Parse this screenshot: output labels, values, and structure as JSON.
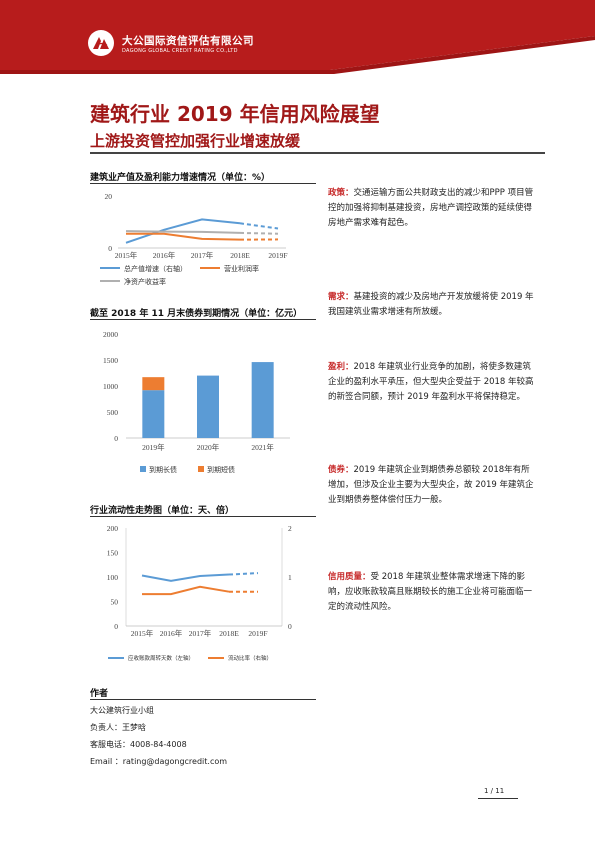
{
  "header": {
    "logo_cn": "大公国际资信评估有限公司",
    "logo_en": "DAGONG GLOBAL CREDIT RATING CO.,LTD",
    "brand_color": "#b71c1c"
  },
  "title": "建筑行业 2019 年信用风险展望",
  "subtitle": "上游投资管控加强行业增速放缓",
  "chart1": {
    "section_title": "建筑业产值及盈利能力增速情况（单位：%）",
    "chart_data": {
      "type": "line",
      "categories": [
        "2015年",
        "2016年",
        "2017年",
        "2018E",
        "2019F"
      ],
      "ylim": [
        0,
        20
      ],
      "yticks": [
        "20",
        "0"
      ],
      "series": [
        {
          "name": "总产值增速（右轴）",
          "color": "#5b9bd5",
          "values": [
            2,
            7,
            11,
            9.5,
            7.5
          ]
        },
        {
          "name": "营业利润率",
          "color": "#ed7d31",
          "values": [
            5.5,
            5.5,
            3.5,
            3.2,
            3.3
          ]
        },
        {
          "name": "净资产收益率",
          "color": "#b0b0b0",
          "values": [
            6.5,
            6.3,
            6.2,
            5.8,
            5.5
          ]
        }
      ]
    }
  },
  "chart2": {
    "section_title": "截至 2018 年 11 月末债券到期情况（单位：亿元）",
    "chart_data": {
      "type": "bar",
      "categories": [
        "2019年",
        "2020年",
        "2021年"
      ],
      "ylim": [
        0,
        2000
      ],
      "yticks": [
        "2000",
        "1500",
        "1000",
        "500",
        "0"
      ],
      "series": [
        {
          "name": "到期长债",
          "color": "#5b9bd5",
          "values": [
            920,
            1200,
            1460
          ]
        },
        {
          "name": "到期短债",
          "color": "#ed7d31",
          "values": [
            250,
            0,
            0
          ]
        }
      ]
    }
  },
  "chart3": {
    "section_title": "行业流动性走势图（单位：天、倍）",
    "chart_data": {
      "type": "line",
      "categories": [
        "2015年",
        "2016年",
        "2017年",
        "2018E",
        "2019F"
      ],
      "ylim": [
        0,
        200
      ],
      "y2lim": [
        0,
        2
      ],
      "yticks": [
        "200",
        "150",
        "100",
        "50",
        "0"
      ],
      "y2ticks": [
        "2",
        "1",
        "0"
      ],
      "series": [
        {
          "name": "应收账款周转天数（左轴）",
          "color": "#5b9bd5",
          "values": [
            103,
            92,
            102,
            105,
            108
          ]
        },
        {
          "name": "流动比率（右轴）",
          "color": "#ed7d31",
          "values": [
            0.65,
            0.65,
            0.8,
            0.7,
            0.7
          ]
        }
      ]
    }
  },
  "paragraphs": [
    {
      "keyword": "政策：",
      "text": "交通运输方面公共财政支出的减少和PPP 项目管控的加强将抑制基建投资，房地产调控政策的延续使得房地产需求难有起色。"
    },
    {
      "keyword": "需求：",
      "text": "基建投资的减少及房地产开发放缓将使 2019 年我国建筑业需求增速有所放缓。"
    },
    {
      "keyword": "盈利：",
      "text": "2018 年建筑业行业竞争的加剧，将使多数建筑企业的盈利水平承压，但大型央企受益于 2018 年较高的新签合同额，预计 2019 年盈利水平将保持稳定。"
    },
    {
      "keyword": "债券：",
      "text": "2019 年建筑企业到期债券总额较 2018年有所增加，但涉及企业主要为大型央企，故 2019 年建筑企业到期债券整体偿付压力一般。"
    },
    {
      "keyword": "信用质量：",
      "text": "受 2018 年建筑业整体需求增速下降的影响，应收账款较高且账期较长的施工企业将可能面临一定的流动性风险。"
    }
  ],
  "author": {
    "heading": "作者",
    "team": "大公建筑行业小组",
    "lead": "负责人：王梦晗",
    "phone": "客服电话：4008-84-4008",
    "email": "Email    ：rating@dagongcredit.com"
  },
  "page_number": "1 / 11"
}
